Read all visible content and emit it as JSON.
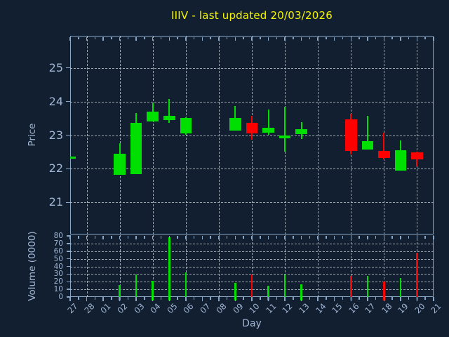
{
  "title": "IIIV - last updated 20/03/2026",
  "colors": {
    "background": "#121f30",
    "title": "#f5f500",
    "text": "#a0b6d4",
    "spine": "#88a7c7",
    "grid": "#b8c0c8",
    "up": "#00e000",
    "down": "#ff0000"
  },
  "chart_data": {
    "type": "candlestick_with_volume_bars",
    "title": "IIIV - last updated 20/03/2026",
    "xlabel": "Day",
    "price_ylabel": "Price",
    "volume_ylabel": "Volume (0000)",
    "legend": "none",
    "grid": true,
    "x_ticklabels": [
      "27",
      "28",
      "01",
      "02",
      "03",
      "04",
      "05",
      "06",
      "07",
      "08",
      "09",
      "10",
      "11",
      "12",
      "13",
      "14",
      "15",
      "16",
      "17",
      "18",
      "19",
      "20",
      "21"
    ],
    "grid_x_days": [
      "28",
      "02",
      "04",
      "06",
      "08",
      "10",
      "12",
      "14",
      "16",
      "18",
      "20"
    ],
    "price_ylim": [
      20.05,
      25.95
    ],
    "price_yticks": [
      21,
      22,
      23,
      24,
      25
    ],
    "volume_ylim": [
      0,
      81.4
    ],
    "volume_yticks": [
      0,
      10,
      20,
      30,
      40,
      50,
      60,
      70,
      80
    ],
    "ohlcv": [
      {
        "day": "27",
        "open": 22.31,
        "high": 22.36,
        "low": 22.3,
        "close": 22.36,
        "volume": 0
      },
      {
        "day": "02",
        "open": 21.83,
        "high": 22.75,
        "low": 21.83,
        "close": 22.45,
        "volume": 16
      },
      {
        "day": "03",
        "open": 21.85,
        "high": 23.65,
        "low": 21.85,
        "close": 23.37,
        "volume": 29
      },
      {
        "day": "04",
        "open": 23.4,
        "high": 23.95,
        "low": 23.4,
        "close": 23.7,
        "volume": 21
      },
      {
        "day": "05",
        "open": 23.44,
        "high": 24.07,
        "low": 23.36,
        "close": 23.58,
        "volume": 78
      },
      {
        "day": "06",
        "open": 23.06,
        "high": 23.54,
        "low": 23.0,
        "close": 23.51,
        "volume": 32
      },
      {
        "day": "09",
        "open": 23.13,
        "high": 23.87,
        "low": 23.13,
        "close": 23.52,
        "volume": 18
      },
      {
        "day": "10",
        "open": 23.37,
        "high": 23.58,
        "low": 22.87,
        "close": 23.06,
        "volume": 29
      },
      {
        "day": "11",
        "open": 23.07,
        "high": 23.76,
        "low": 23.0,
        "close": 23.21,
        "volume": 15
      },
      {
        "day": "12",
        "open": 22.9,
        "high": 23.85,
        "low": 22.5,
        "close": 23.0,
        "volume": 29
      },
      {
        "day": "13",
        "open": 23.03,
        "high": 23.38,
        "low": 22.88,
        "close": 23.17,
        "volume": 17
      },
      {
        "day": "16",
        "open": 23.46,
        "high": 23.63,
        "low": 22.42,
        "close": 22.53,
        "volume": 28
      },
      {
        "day": "17",
        "open": 22.58,
        "high": 23.58,
        "low": 22.58,
        "close": 22.83,
        "volume": 28
      },
      {
        "day": "18",
        "open": 22.53,
        "high": 23.07,
        "low": 22.29,
        "close": 22.33,
        "volume": 20
      },
      {
        "day": "19",
        "open": 21.94,
        "high": 22.85,
        "low": 21.94,
        "close": 22.55,
        "volume": 25
      },
      {
        "day": "20",
        "open": 22.49,
        "high": 22.52,
        "low": 22.07,
        "close": 22.29,
        "volume": 58
      }
    ]
  }
}
